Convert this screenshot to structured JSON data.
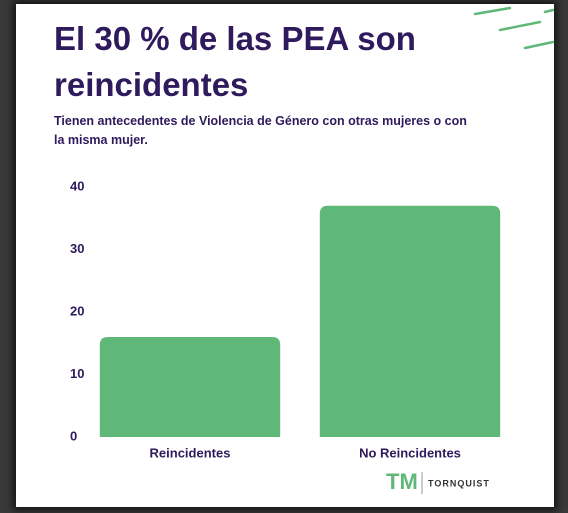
{
  "chart_data": {
    "type": "bar",
    "title": "El 30 % de las PEA son reincidentes",
    "subtitle": "Tienen antecedentes de Violencia de Género con otras mujeres o con la misma mujer.",
    "categories": [
      "Reincidentes",
      "No Reincidentes"
    ],
    "values": [
      16,
      37
    ],
    "color": "#5fb878",
    "ylim": [
      0,
      40
    ],
    "yticks": [
      0,
      10,
      20,
      30,
      40
    ],
    "grid": false
  },
  "logo": {
    "mark": "TM",
    "name": "TORNQUIST"
  }
}
